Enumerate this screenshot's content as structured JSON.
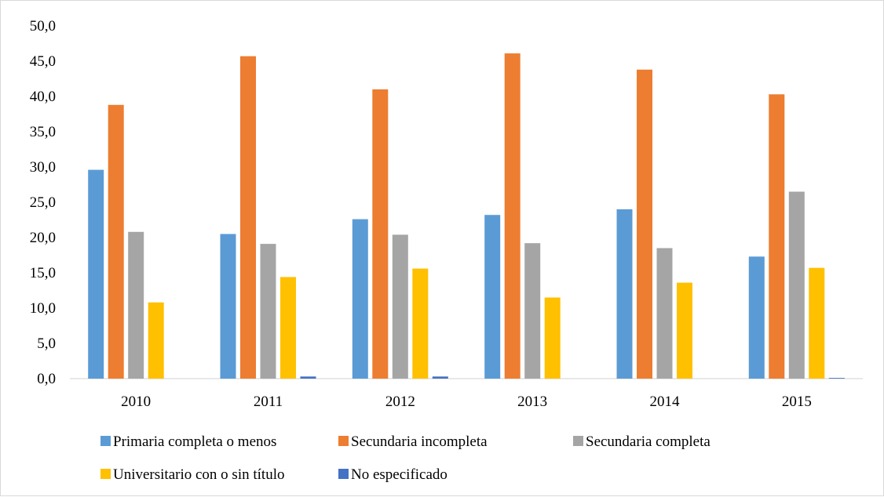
{
  "chart_data": {
    "type": "bar",
    "categories": [
      "2010",
      "2011",
      "2012",
      "2013",
      "2014",
      "2015"
    ],
    "series": [
      {
        "name": "Primaria completa o menos",
        "color": "#5b9bd5",
        "values": [
          29.6,
          20.5,
          22.6,
          23.2,
          24.0,
          17.3
        ]
      },
      {
        "name": "Secundaria incompleta",
        "color": "#ed7d31",
        "values": [
          38.8,
          45.7,
          41.0,
          46.1,
          43.8,
          40.3
        ]
      },
      {
        "name": "Secundaria completa",
        "color": "#a5a5a5",
        "values": [
          20.8,
          19.1,
          20.4,
          19.2,
          18.5,
          26.5
        ]
      },
      {
        "name": "Universitario con o sin título",
        "color": "#ffc000",
        "values": [
          10.8,
          14.4,
          15.6,
          11.5,
          13.6,
          15.7
        ]
      },
      {
        "name": "No especificado",
        "color": "#4472c4",
        "values": [
          0.0,
          0.3,
          0.3,
          0.0,
          0.0,
          0.1
        ]
      }
    ],
    "ylim": [
      0,
      50
    ],
    "yticks": [
      "0,0",
      "5,0",
      "10,0",
      "15,0",
      "20,0",
      "25,0",
      "30,0",
      "35,0",
      "40,0",
      "45,0",
      "50,0"
    ],
    "grid": false,
    "legend_position": "bottom"
  }
}
